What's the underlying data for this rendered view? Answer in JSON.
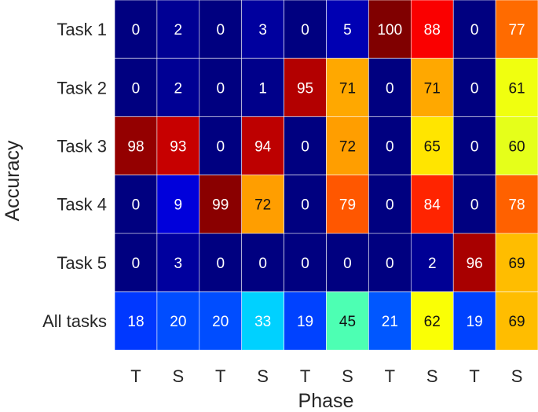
{
  "chart_data": {
    "type": "heatmap",
    "xlabel": "Phase",
    "ylabel": "Accuracy",
    "x_categories": [
      "T",
      "S",
      "T",
      "S",
      "T",
      "S",
      "T",
      "S",
      "T",
      "S"
    ],
    "y_categories": [
      "Task 1",
      "Task 2",
      "Task 3",
      "Task 4",
      "Task 5",
      "All tasks"
    ],
    "values": [
      [
        0,
        2,
        0,
        3,
        0,
        5,
        100,
        88,
        0,
        77
      ],
      [
        0,
        2,
        0,
        1,
        95,
        71,
        0,
        71,
        0,
        61
      ],
      [
        98,
        93,
        0,
        94,
        0,
        72,
        0,
        65,
        0,
        60
      ],
      [
        0,
        9,
        99,
        72,
        0,
        79,
        0,
        84,
        0,
        78
      ],
      [
        0,
        3,
        0,
        0,
        0,
        0,
        0,
        2,
        96,
        69
      ],
      [
        18,
        20,
        20,
        33,
        19,
        45,
        21,
        62,
        19,
        69
      ]
    ],
    "value_range": [
      0,
      100
    ],
    "colormap": "jet",
    "grid": false,
    "colorbar": false
  }
}
